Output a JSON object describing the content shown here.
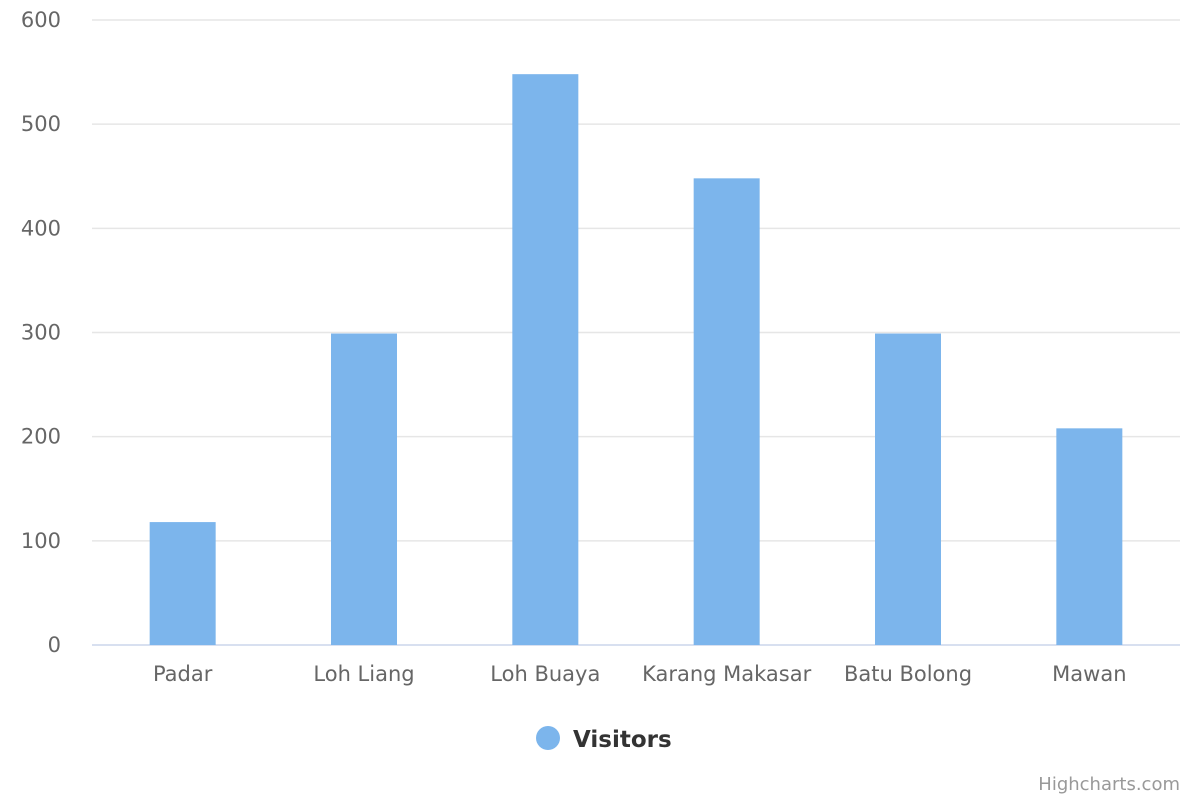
{
  "chart_data": {
    "type": "bar",
    "categories": [
      "Padar",
      "Loh Liang",
      "Loh Buaya",
      "Karang Makasar",
      "Batu Bolong",
      "Mawan"
    ],
    "series": [
      {
        "name": "Visitors",
        "values": [
          118,
          299,
          548,
          448,
          299,
          208
        ],
        "color": "#7cb5ec"
      }
    ],
    "ylim": [
      0,
      600
    ],
    "yticks": [
      0,
      100,
      200,
      300,
      400,
      500,
      600
    ],
    "grid": true,
    "legend": "bottom-center"
  },
  "credits": "Highcharts.com"
}
